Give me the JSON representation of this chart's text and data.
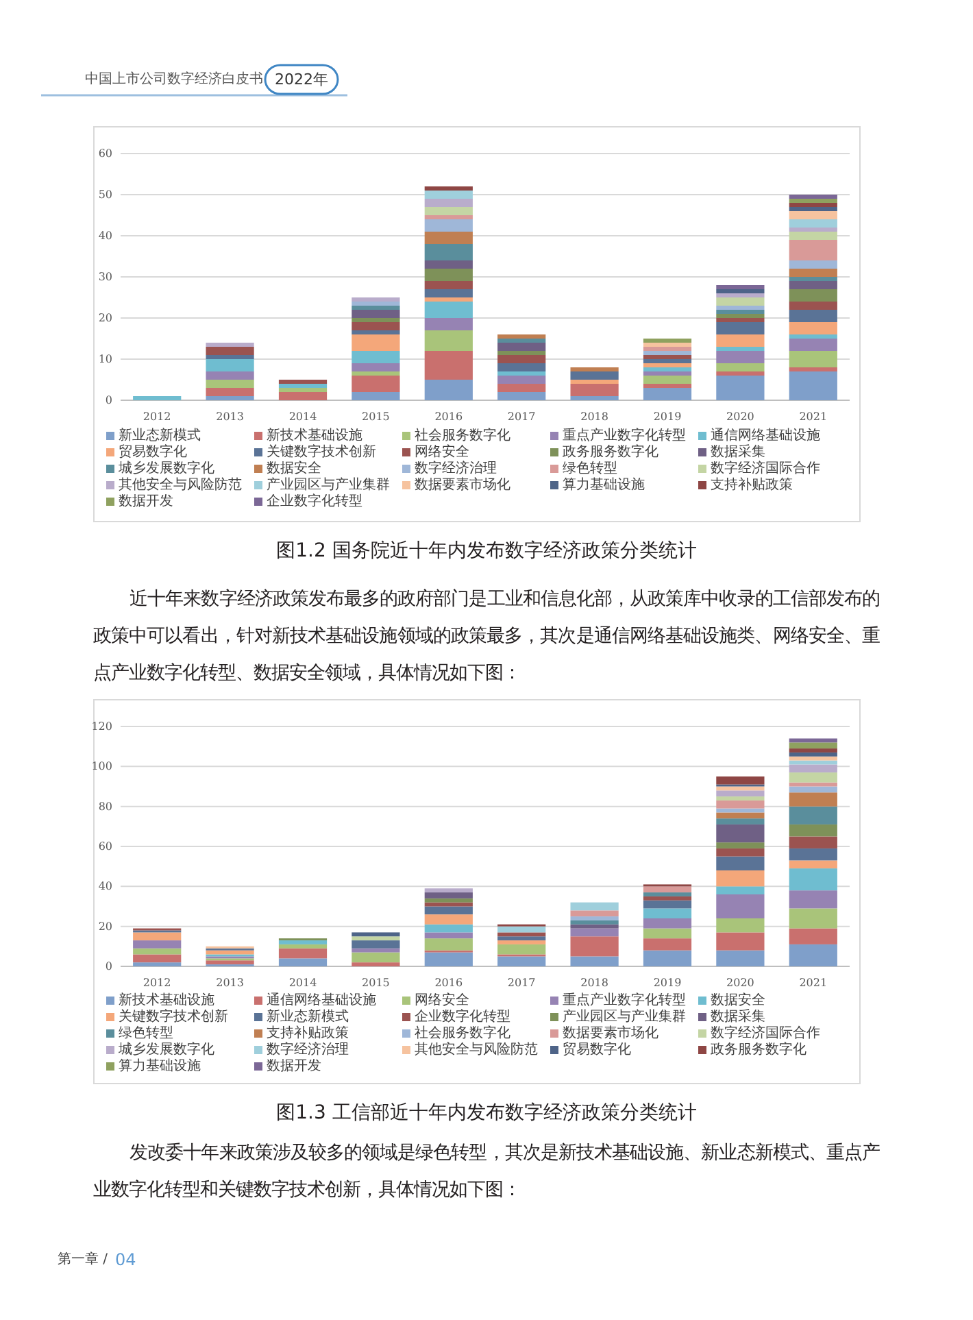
{
  "chart_data": [
    {
      "type": "bar",
      "stacked": true,
      "title": "图1.2 国务院近十年内发布数字经济政策分类统计",
      "annotations": [
        "中国上市公司数字经济白皮书",
        "2022年"
      ],
      "categories": [
        "2012",
        "2013",
        "2014",
        "2015",
        "2016",
        "2017",
        "2018",
        "2019",
        "2020",
        "2021"
      ],
      "ylim": [
        0,
        60
      ],
      "yticks": [
        0,
        10,
        20,
        30,
        40,
        50,
        60
      ],
      "grid": "y",
      "legend": "bottom",
      "series": [
        {
          "name": "新业态新模式",
          "color": "#7f9fca",
          "values": [
            null,
            1,
            null,
            2,
            5,
            2,
            1,
            3,
            6,
            7
          ]
        },
        {
          "name": "新技术基础设施",
          "color": "#c9706e",
          "values": [
            null,
            2,
            2,
            4,
            7,
            2,
            3,
            1,
            1,
            1
          ]
        },
        {
          "name": "社会服务数字化",
          "color": "#a9c47a",
          "values": [
            null,
            2,
            1,
            1,
            5,
            null,
            null,
            2,
            2,
            4
          ]
        },
        {
          "name": "重点产业数字化转型",
          "color": "#9683b3",
          "values": [
            null,
            2,
            null,
            2,
            3,
            2,
            null,
            1,
            3,
            3
          ]
        },
        {
          "name": "通信网络基础设施",
          "color": "#6fbdd0",
          "values": [
            1,
            3,
            1,
            3,
            4,
            1,
            null,
            1,
            1,
            1
          ]
        },
        {
          "name": "贸易数字化",
          "color": "#f4a77a",
          "values": [
            null,
            null,
            null,
            4,
            1,
            null,
            1,
            1,
            3,
            3
          ]
        },
        {
          "name": "关键数字技术创新",
          "color": "#5a7396",
          "values": [
            null,
            1,
            null,
            1,
            2,
            2,
            2,
            1,
            3,
            3
          ]
        },
        {
          "name": "网络安全",
          "color": "#9b5350",
          "values": [
            null,
            2,
            1,
            2,
            2,
            2,
            null,
            1,
            1,
            2
          ]
        },
        {
          "name": "政务服务数字化",
          "color": "#7e9159",
          "values": [
            null,
            null,
            null,
            1,
            3,
            1,
            null,
            null,
            1,
            3
          ]
        },
        {
          "name": "数据采集",
          "color": "#6f6085",
          "values": [
            null,
            null,
            null,
            2,
            2,
            2,
            null,
            null,
            null,
            2
          ]
        },
        {
          "name": "城乡发展数字化",
          "color": "#5a8e9c",
          "values": [
            null,
            null,
            null,
            1,
            4,
            1,
            null,
            null,
            1,
            1
          ]
        },
        {
          "name": "数据安全",
          "color": "#c07f52",
          "values": [
            null,
            null,
            null,
            null,
            3,
            1,
            1,
            null,
            null,
            2
          ]
        },
        {
          "name": "数字经济治理",
          "color": "#9fb7d8",
          "values": [
            null,
            null,
            null,
            1,
            3,
            null,
            null,
            1,
            1,
            2
          ]
        },
        {
          "name": "绿色转型",
          "color": "#d99a98",
          "values": [
            null,
            null,
            null,
            null,
            1,
            null,
            null,
            1,
            null,
            5
          ]
        },
        {
          "name": "数字经济国际合作",
          "color": "#c4d5a4",
          "values": [
            null,
            null,
            null,
            null,
            2,
            null,
            null,
            null,
            2,
            2
          ]
        },
        {
          "name": "其他安全与风险防范",
          "color": "#b9accb",
          "values": [
            null,
            1,
            null,
            1,
            2,
            null,
            null,
            null,
            1,
            1
          ]
        },
        {
          "name": "产业园区与产业集群",
          "color": "#9fcfdc",
          "values": [
            null,
            null,
            null,
            null,
            2,
            null,
            null,
            null,
            null,
            2
          ]
        },
        {
          "name": "数据要素市场化",
          "color": "#f6c39f",
          "values": [
            null,
            null,
            null,
            null,
            null,
            null,
            null,
            1,
            null,
            2
          ]
        },
        {
          "name": "算力基础设施",
          "color": "#4e6488",
          "values": [
            null,
            null,
            null,
            null,
            null,
            null,
            null,
            null,
            1,
            1
          ]
        },
        {
          "name": "支持补贴政策",
          "color": "#8e4644",
          "values": [
            null,
            null,
            null,
            null,
            1,
            null,
            null,
            null,
            null,
            1
          ]
        },
        {
          "name": "数据开发",
          "color": "#8fa15f",
          "values": [
            null,
            null,
            null,
            null,
            null,
            null,
            null,
            1,
            null,
            1
          ]
        },
        {
          "name": "企业数字化转型",
          "color": "#7b6796",
          "values": [
            null,
            null,
            null,
            null,
            null,
            null,
            null,
            null,
            1,
            1
          ]
        }
      ]
    },
    {
      "type": "bar",
      "stacked": true,
      "title": "图1.3 工信部近十年内发布数字经济政策分类统计",
      "annotations": [
        "近十年来数字经济政策发布最多的政府部门是工业和信息化部，从政策库中收录的工信部发布的政策中可以看出，针对新技术基础设施领域的政策最多，其次是通信网络基础设施类、网络安全、重点产业数字化转型、数据安全领域，具体情况如下图：",
        "发改委十年来政策涉及较多的领域是绿色转型，其次是新技术基础设施、新业态新模式、重点产业数字化转型和关键数字技术创新，具体情况如下图：",
        "第一章 /",
        "04"
      ],
      "categories": [
        "2012",
        "2013",
        "2014",
        "2015",
        "2016",
        "2017",
        "2018",
        "2019",
        "2020",
        "2021"
      ],
      "ylim": [
        0,
        120
      ],
      "yticks": [
        0,
        20,
        40,
        60,
        80,
        100,
        120
      ],
      "grid": "y",
      "legend": "bottom",
      "series": [
        {
          "name": "新技术基础设施",
          "color": "#7f9fca",
          "values": [
            2,
            1,
            4,
            null,
            7,
            5,
            5,
            8,
            8,
            11
          ]
        },
        {
          "name": "通信网络基础设施",
          "color": "#c9706e",
          "values": [
            4,
            2,
            5,
            2,
            1,
            1,
            10,
            6,
            9,
            8
          ]
        },
        {
          "name": "网络安全",
          "color": "#a9c47a",
          "values": [
            3,
            1,
            2,
            5,
            6,
            5,
            null,
            5,
            7,
            10
          ]
        },
        {
          "name": "重点产业数字化转型",
          "color": "#9683b3",
          "values": [
            4,
            1,
            null,
            2,
            3,
            null,
            4,
            5,
            12,
            9
          ]
        },
        {
          "name": "数据安全",
          "color": "#6fbdd0",
          "values": [
            null,
            1,
            2,
            null,
            4,
            null,
            null,
            5,
            4,
            11
          ]
        },
        {
          "name": "关键数字技术创新",
          "color": "#f4a77a",
          "values": [
            4,
            2,
            null,
            null,
            5,
            2,
            null,
            null,
            8,
            4
          ]
        },
        {
          "name": "新业态新模式",
          "color": "#5a7396",
          "values": [
            1,
            1,
            null,
            4,
            4,
            2,
            null,
            4,
            7,
            6
          ]
        },
        {
          "name": "企业数字化转型",
          "color": "#9b5350",
          "values": [
            1,
            null,
            null,
            null,
            2,
            2,
            null,
            2,
            4,
            6
          ]
        },
        {
          "name": "产业园区与产业集群",
          "color": "#7e9159",
          "values": [
            null,
            null,
            1,
            null,
            2,
            null,
            null,
            null,
            3,
            6
          ]
        },
        {
          "name": "数据采集",
          "color": "#6f6085",
          "values": [
            null,
            null,
            null,
            null,
            3,
            null,
            2,
            null,
            9,
            null
          ]
        },
        {
          "name": "绿色转型",
          "color": "#5a8e9c",
          "values": [
            null,
            null,
            null,
            null,
            null,
            null,
            2,
            2,
            3,
            9
          ]
        },
        {
          "name": "支持补贴政策",
          "color": "#c07f52",
          "values": [
            null,
            null,
            null,
            null,
            null,
            null,
            null,
            null,
            3,
            7
          ]
        },
        {
          "name": "社会服务数字化",
          "color": "#9fb7d8",
          "values": [
            null,
            null,
            null,
            null,
            null,
            null,
            2,
            null,
            2,
            3
          ]
        },
        {
          "name": "数据要素市场化",
          "color": "#d99a98",
          "values": [
            null,
            null,
            null,
            null,
            null,
            null,
            3,
            3,
            4,
            2
          ]
        },
        {
          "name": "数字经济国际合作",
          "color": "#c4d5a4",
          "values": [
            null,
            null,
            null,
            2,
            null,
            null,
            null,
            null,
            2,
            5
          ]
        },
        {
          "name": "城乡发展数字化",
          "color": "#b9accb",
          "values": [
            null,
            null,
            null,
            null,
            2,
            null,
            null,
            null,
            3,
            4
          ]
        },
        {
          "name": "数字经济治理",
          "color": "#9fcfdc",
          "values": [
            null,
            null,
            null,
            null,
            null,
            3,
            4,
            null,
            null,
            2
          ]
        },
        {
          "name": "其他安全与风险防范",
          "color": "#f6c39f",
          "values": [
            null,
            1,
            null,
            null,
            null,
            null,
            null,
            null,
            2,
            2
          ]
        },
        {
          "name": "贸易数字化",
          "color": "#4e6488",
          "values": [
            null,
            null,
            null,
            2,
            null,
            null,
            null,
            null,
            1,
            2
          ]
        },
        {
          "name": "政务服务数字化",
          "color": "#8e4644",
          "values": [
            null,
            null,
            null,
            null,
            null,
            1,
            null,
            1,
            4,
            2
          ]
        },
        {
          "name": "算力基础设施",
          "color": "#8fa15f",
          "values": [
            null,
            null,
            null,
            null,
            null,
            null,
            null,
            null,
            null,
            3
          ]
        },
        {
          "name": "数据开发",
          "color": "#7b6796",
          "values": [
            null,
            null,
            null,
            null,
            null,
            null,
            null,
            null,
            null,
            2
          ]
        }
      ]
    }
  ]
}
